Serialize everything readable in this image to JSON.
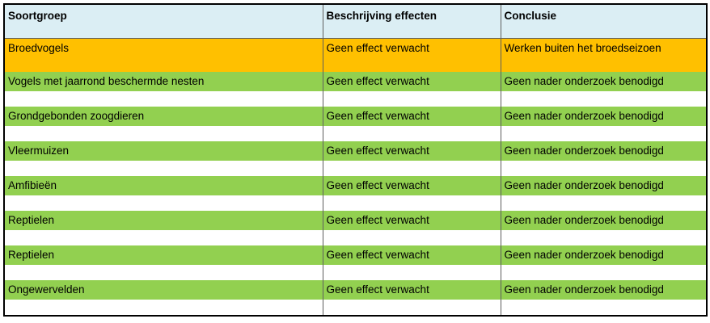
{
  "table": {
    "headers": [
      "Soortgroep",
      "Beschrijving effecten",
      "Conclusie"
    ],
    "rows": [
      {
        "soortgroep": "Broedvogels",
        "effect": "Geen effect verwacht",
        "conclusie": "Werken buiten het broedseizoen",
        "status_color": "#ffc000"
      },
      {
        "soortgroep": "Vogels met jaarrond beschermde nesten",
        "effect": "Geen effect verwacht",
        "conclusie": "Geen nader onderzoek benodigd",
        "status_color": "#92d050"
      },
      {
        "soortgroep": "Grondgebonden zoogdieren",
        "effect": "Geen effect verwacht",
        "conclusie": "Geen nader onderzoek benodigd",
        "status_color": "#92d050"
      },
      {
        "soortgroep": "Vleermuizen",
        "effect": "Geen effect verwacht",
        "conclusie": "Geen nader onderzoek benodigd",
        "status_color": "#92d050"
      },
      {
        "soortgroep": "Amfibieën",
        "effect": "Geen effect verwacht",
        "conclusie": "Geen nader onderzoek benodigd",
        "status_color": "#92d050"
      },
      {
        "soortgroep": "Reptielen",
        "effect": "Geen effect verwacht",
        "conclusie": "Geen nader onderzoek benodigd",
        "status_color": "#92d050"
      },
      {
        "soortgroep": "Reptielen",
        "effect": "Geen effect verwacht",
        "conclusie": "Geen nader onderzoek benodigd",
        "status_color": "#92d050"
      },
      {
        "soortgroep": "Ongewervelden",
        "effect": "Geen effect verwacht",
        "conclusie": "Geen nader onderzoek benodigd",
        "status_color": "#92d050"
      }
    ]
  },
  "colors": {
    "header_bg": "#dbeef4",
    "orange": "#ffc000",
    "green": "#92d050"
  }
}
